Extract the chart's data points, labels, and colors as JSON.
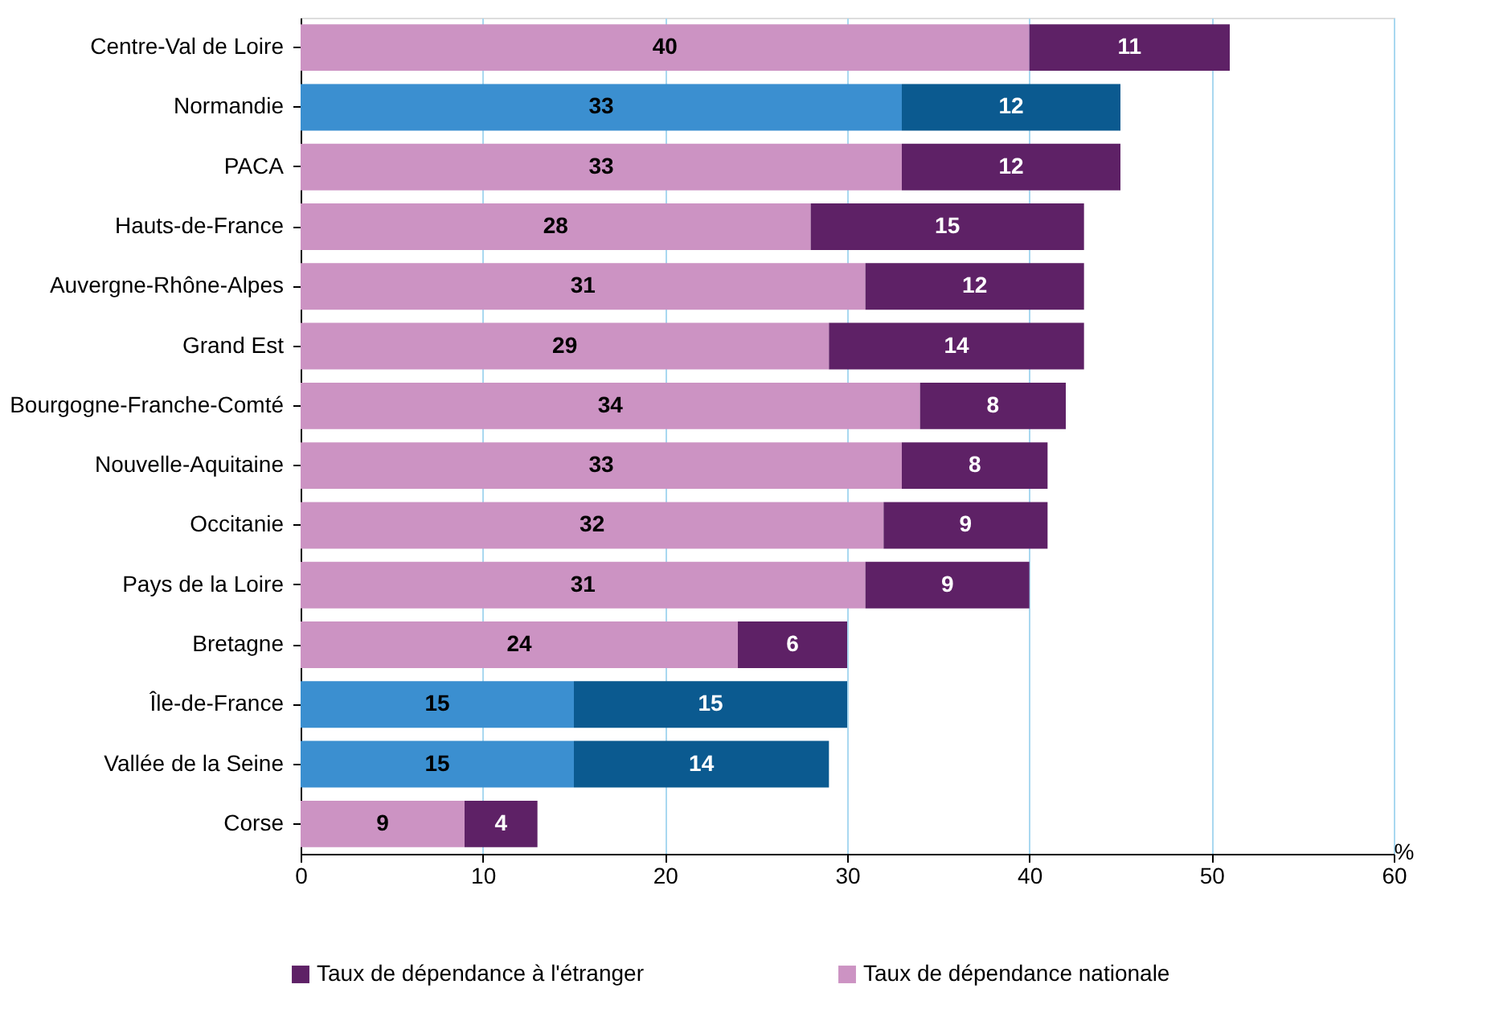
{
  "chart_data": {
    "type": "bar",
    "orientation": "horizontal",
    "stacked": true,
    "categories": [
      "Centre-Val de Loire",
      "Normandie",
      "PACA",
      "Hauts-de-France",
      "Auvergne-Rhône-Alpes",
      "Grand Est",
      "Bourgogne-Franche-Comté",
      "Nouvelle-Aquitaine",
      "Occitanie",
      "Pays de la Loire",
      "Bretagne",
      "Île-de-France",
      "Vallée de la Seine",
      "Corse"
    ],
    "series": [
      {
        "name": "Taux de dépendance nationale",
        "color": "#cc93c3",
        "colors": [
          "#cc93c3",
          "#3b8fd0",
          "#cc93c3",
          "#cc93c3",
          "#cc93c3",
          "#cc93c3",
          "#cc93c3",
          "#cc93c3",
          "#cc93c3",
          "#cc93c3",
          "#cc93c3",
          "#3b8fd0",
          "#3b8fd0",
          "#cc93c3"
        ],
        "values": [
          40,
          33,
          33,
          28,
          31,
          29,
          34,
          33,
          32,
          31,
          24,
          15,
          15,
          9
        ]
      },
      {
        "name": "Taux de dépendance à l'étranger",
        "color": "#5e2166",
        "colors": [
          "#5e2166",
          "#0b5a90",
          "#5e2166",
          "#5e2166",
          "#5e2166",
          "#5e2166",
          "#5e2166",
          "#5e2166",
          "#5e2166",
          "#5e2166",
          "#5e2166",
          "#0b5a90",
          "#0b5a90",
          "#5e2166"
        ],
        "values": [
          11,
          12,
          12,
          15,
          12,
          14,
          8,
          8,
          9,
          9,
          6,
          15,
          14,
          4
        ]
      }
    ],
    "xlabel": "%",
    "xlim": [
      0,
      60
    ],
    "xticks": [
      0,
      10,
      20,
      30,
      40,
      50,
      60
    ],
    "grid": "x",
    "data_labels": true,
    "legend": "bottom"
  }
}
